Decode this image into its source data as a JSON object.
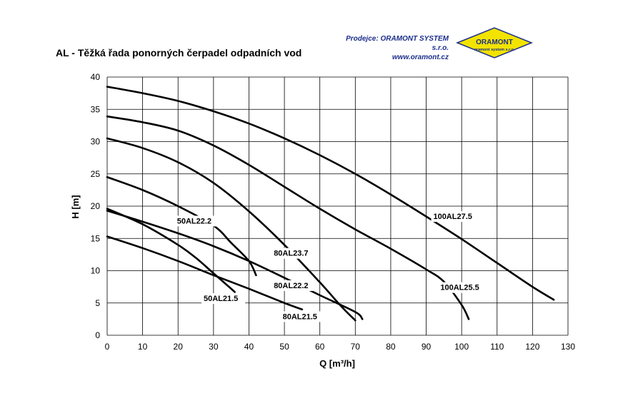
{
  "title": "AL - Těžká řada ponorných čerpadel odpadních vod",
  "dealer": {
    "prefix": "Prodejce:",
    "company": "ORAMONT SYSTEM s.r.o.",
    "web": "www.oramont.cz",
    "logo_text": "ORAMONT",
    "logo_subtext": "oramont system s.r.o.",
    "logo_color": "#f2e300",
    "text_color": "#1c2f8c"
  },
  "chart_data": {
    "type": "line",
    "xlabel": "Q [m³/h]",
    "ylabel": "H [m]",
    "xlim": [
      0,
      130
    ],
    "ylim": [
      0,
      40
    ],
    "x_ticks": [
      0,
      10,
      20,
      30,
      40,
      50,
      60,
      70,
      80,
      90,
      100,
      110,
      120,
      130
    ],
    "y_ticks": [
      0,
      5,
      10,
      15,
      20,
      25,
      30,
      35,
      40
    ],
    "grid": true,
    "series": [
      {
        "name": "100AL27.5",
        "points": [
          [
            0,
            38.5
          ],
          [
            10,
            37.5
          ],
          [
            20,
            36.3
          ],
          [
            30,
            34.7
          ],
          [
            40,
            32.8
          ],
          [
            50,
            30.5
          ],
          [
            60,
            27.9
          ],
          [
            70,
            25.0
          ],
          [
            80,
            21.8
          ],
          [
            90,
            18.4
          ],
          [
            100,
            14.9
          ],
          [
            110,
            11.2
          ],
          [
            120,
            7.5
          ],
          [
            126,
            5.5
          ]
        ]
      },
      {
        "name": "100AL25.5",
        "points": [
          [
            0,
            33.9
          ],
          [
            10,
            33.0
          ],
          [
            20,
            31.7
          ],
          [
            30,
            29.4
          ],
          [
            40,
            26.4
          ],
          [
            50,
            23.0
          ],
          [
            60,
            19.6
          ],
          [
            70,
            16.4
          ],
          [
            80,
            13.4
          ],
          [
            90,
            10.2
          ],
          [
            95,
            8.3
          ],
          [
            100,
            4.7
          ],
          [
            102,
            2.5
          ]
        ]
      },
      {
        "name": "80AL23.7",
        "points": [
          [
            0,
            30.5
          ],
          [
            10,
            29.0
          ],
          [
            20,
            26.8
          ],
          [
            30,
            23.6
          ],
          [
            40,
            19.2
          ],
          [
            50,
            14.0
          ],
          [
            60,
            8.2
          ],
          [
            66,
            4.5
          ],
          [
            70,
            2.3
          ]
        ]
      },
      {
        "name": "80AL22.2",
        "points": [
          [
            0,
            19.3
          ],
          [
            10,
            17.6
          ],
          [
            20,
            15.8
          ],
          [
            30,
            13.8
          ],
          [
            40,
            11.5
          ],
          [
            50,
            8.9
          ],
          [
            60,
            6.2
          ],
          [
            70,
            3.6
          ],
          [
            72,
            2.5
          ]
        ]
      },
      {
        "name": "50AL22.2",
        "points": [
          [
            0,
            24.5
          ],
          [
            10,
            22.5
          ],
          [
            20,
            20.0
          ],
          [
            30,
            17.0
          ],
          [
            35,
            14.3
          ],
          [
            40,
            11.5
          ],
          [
            42,
            9.3
          ]
        ]
      },
      {
        "name": "50AL21.5",
        "points": [
          [
            0,
            19.6
          ],
          [
            10,
            17.2
          ],
          [
            20,
            14.0
          ],
          [
            25,
            12.0
          ],
          [
            30,
            9.6
          ],
          [
            35,
            7.2
          ],
          [
            36,
            6.7
          ]
        ]
      },
      {
        "name": "80AL21.5",
        "points": [
          [
            0,
            15.3
          ],
          [
            10,
            13.5
          ],
          [
            20,
            11.5
          ],
          [
            30,
            9.3
          ],
          [
            40,
            7.2
          ],
          [
            50,
            5.0
          ],
          [
            55,
            4.0
          ]
        ]
      }
    ],
    "labels": [
      {
        "text": "100AL27.5",
        "x": 92,
        "y": 18
      },
      {
        "text": "100AL25.5",
        "x": 94,
        "y": 7
      },
      {
        "text": "80AL23.7",
        "x": 47,
        "y": 12.3
      },
      {
        "text": "80AL22.2",
        "x": 47,
        "y": 7.3
      },
      {
        "text": "50AL22.2",
        "x": 19.7,
        "y": 17.3
      },
      {
        "text": "50AL21.5",
        "x": 27.2,
        "y": 5.3
      },
      {
        "text": "80AL21.5",
        "x": 49.5,
        "y": 2.5
      }
    ]
  }
}
